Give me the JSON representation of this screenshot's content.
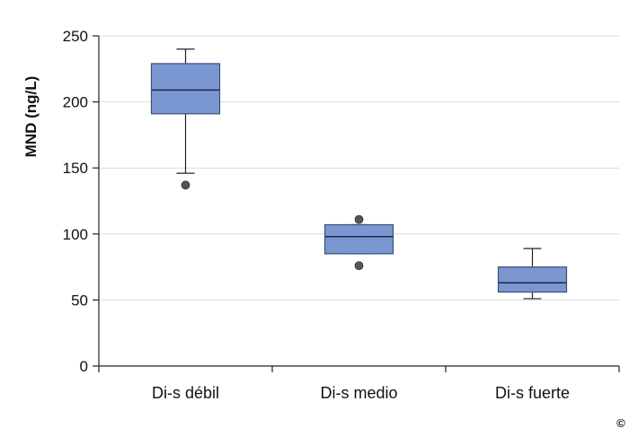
{
  "chart_data": {
    "type": "box",
    "ylabel": "MND (ng/L)",
    "ylim": [
      0,
      250
    ],
    "yticks": [
      0,
      50,
      100,
      150,
      200,
      250
    ],
    "grid": true,
    "categories": [
      "Di-s débil",
      "Di-s medio",
      "Di-s fuerte"
    ],
    "boxes": [
      {
        "whisker_low": 146,
        "q1": 191,
        "median": 209,
        "q3": 229,
        "whisker_high": 240,
        "outliers": [
          137
        ]
      },
      {
        "whisker_low": 85,
        "q1": 85,
        "median": 98,
        "q3": 107,
        "whisker_high": 107,
        "outliers": [
          76,
          111
        ]
      },
      {
        "whisker_low": 51,
        "q1": 56,
        "median": 63,
        "q3": 75,
        "whisker_high": 89,
        "outliers": []
      }
    ],
    "box_fill": "#7b97d1",
    "box_stroke": "#3d4f78",
    "outlier_color": "#555555"
  },
  "corner_mark": "©"
}
